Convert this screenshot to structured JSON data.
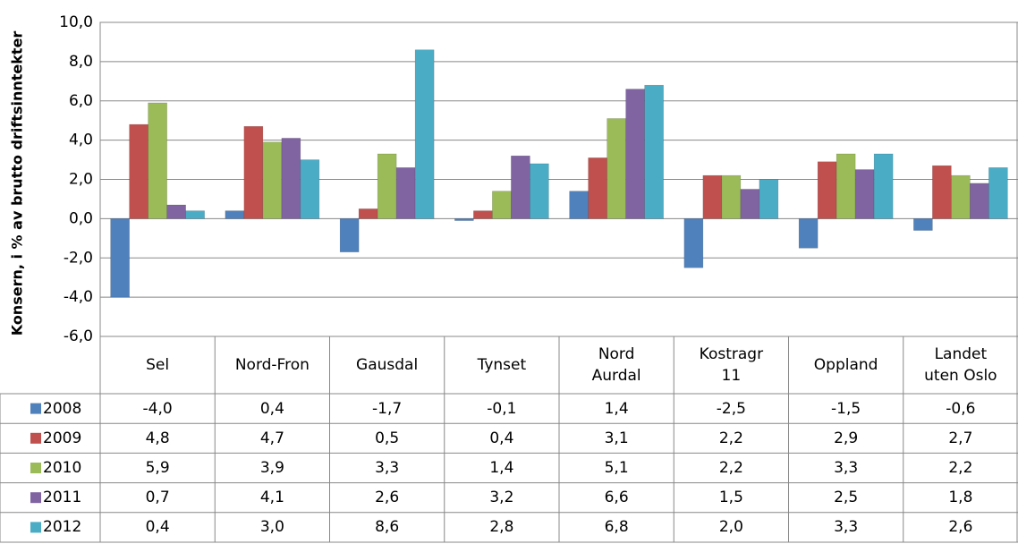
{
  "chart_data": {
    "type": "bar",
    "y_label": "Konsern, i % av brutto driftsinntekter",
    "categories": [
      "Sel",
      "Nord-Fron",
      "Gausdal",
      "Tynset",
      "Nord\nAurdal",
      "Kostragr\n11",
      "Oppland",
      "Landet\nuten Oslo"
    ],
    "series": [
      {
        "name": "2008",
        "color": "#4f81bd",
        "values": [
          -4.0,
          0.4,
          -1.7,
          -0.1,
          1.4,
          -2.5,
          -1.5,
          -0.6
        ],
        "value_labels": [
          "-4,0",
          "0,4",
          "-1,7",
          "-0,1",
          "1,4",
          "-2,5",
          "-1,5",
          "-0,6"
        ]
      },
      {
        "name": "2009",
        "color": "#c0504d",
        "values": [
          4.8,
          4.7,
          0.5,
          0.4,
          3.1,
          2.2,
          2.9,
          2.7
        ],
        "value_labels": [
          "4,8",
          "4,7",
          "0,5",
          "0,4",
          "3,1",
          "2,2",
          "2,9",
          "2,7"
        ]
      },
      {
        "name": "2010",
        "color": "#9bbb59",
        "values": [
          5.9,
          3.9,
          3.3,
          1.4,
          5.1,
          2.2,
          3.3,
          2.2
        ],
        "value_labels": [
          "5,9",
          "3,9",
          "3,3",
          "1,4",
          "5,1",
          "2,2",
          "3,3",
          "2,2"
        ]
      },
      {
        "name": "2011",
        "color": "#8064a2",
        "values": [
          0.7,
          4.1,
          2.6,
          3.2,
          6.6,
          1.5,
          2.5,
          1.8
        ],
        "value_labels": [
          "0,7",
          "4,1",
          "2,6",
          "3,2",
          "6,6",
          "1,5",
          "2,5",
          "1,8"
        ]
      },
      {
        "name": "2012",
        "color": "#4bacc6",
        "values": [
          0.4,
          3.0,
          8.6,
          2.8,
          6.8,
          2.0,
          3.3,
          2.6
        ],
        "value_labels": [
          "0,4",
          "3,0",
          "8,6",
          "2,8",
          "6,8",
          "2,0",
          "3,3",
          "2,6"
        ]
      }
    ],
    "ylim": [
      -6,
      10
    ],
    "yticks": [
      {
        "value": -6,
        "label": "-6,0"
      },
      {
        "value": -4,
        "label": "-4,0"
      },
      {
        "value": -2,
        "label": "-2,0"
      },
      {
        "value": 0,
        "label": "0,0"
      },
      {
        "value": 2,
        "label": "2,0"
      },
      {
        "value": 4,
        "label": "4,0"
      },
      {
        "value": 6,
        "label": "6,0"
      },
      {
        "value": 8,
        "label": "8,0"
      },
      {
        "value": 10,
        "label": "10,0"
      }
    ],
    "grid": true
  }
}
